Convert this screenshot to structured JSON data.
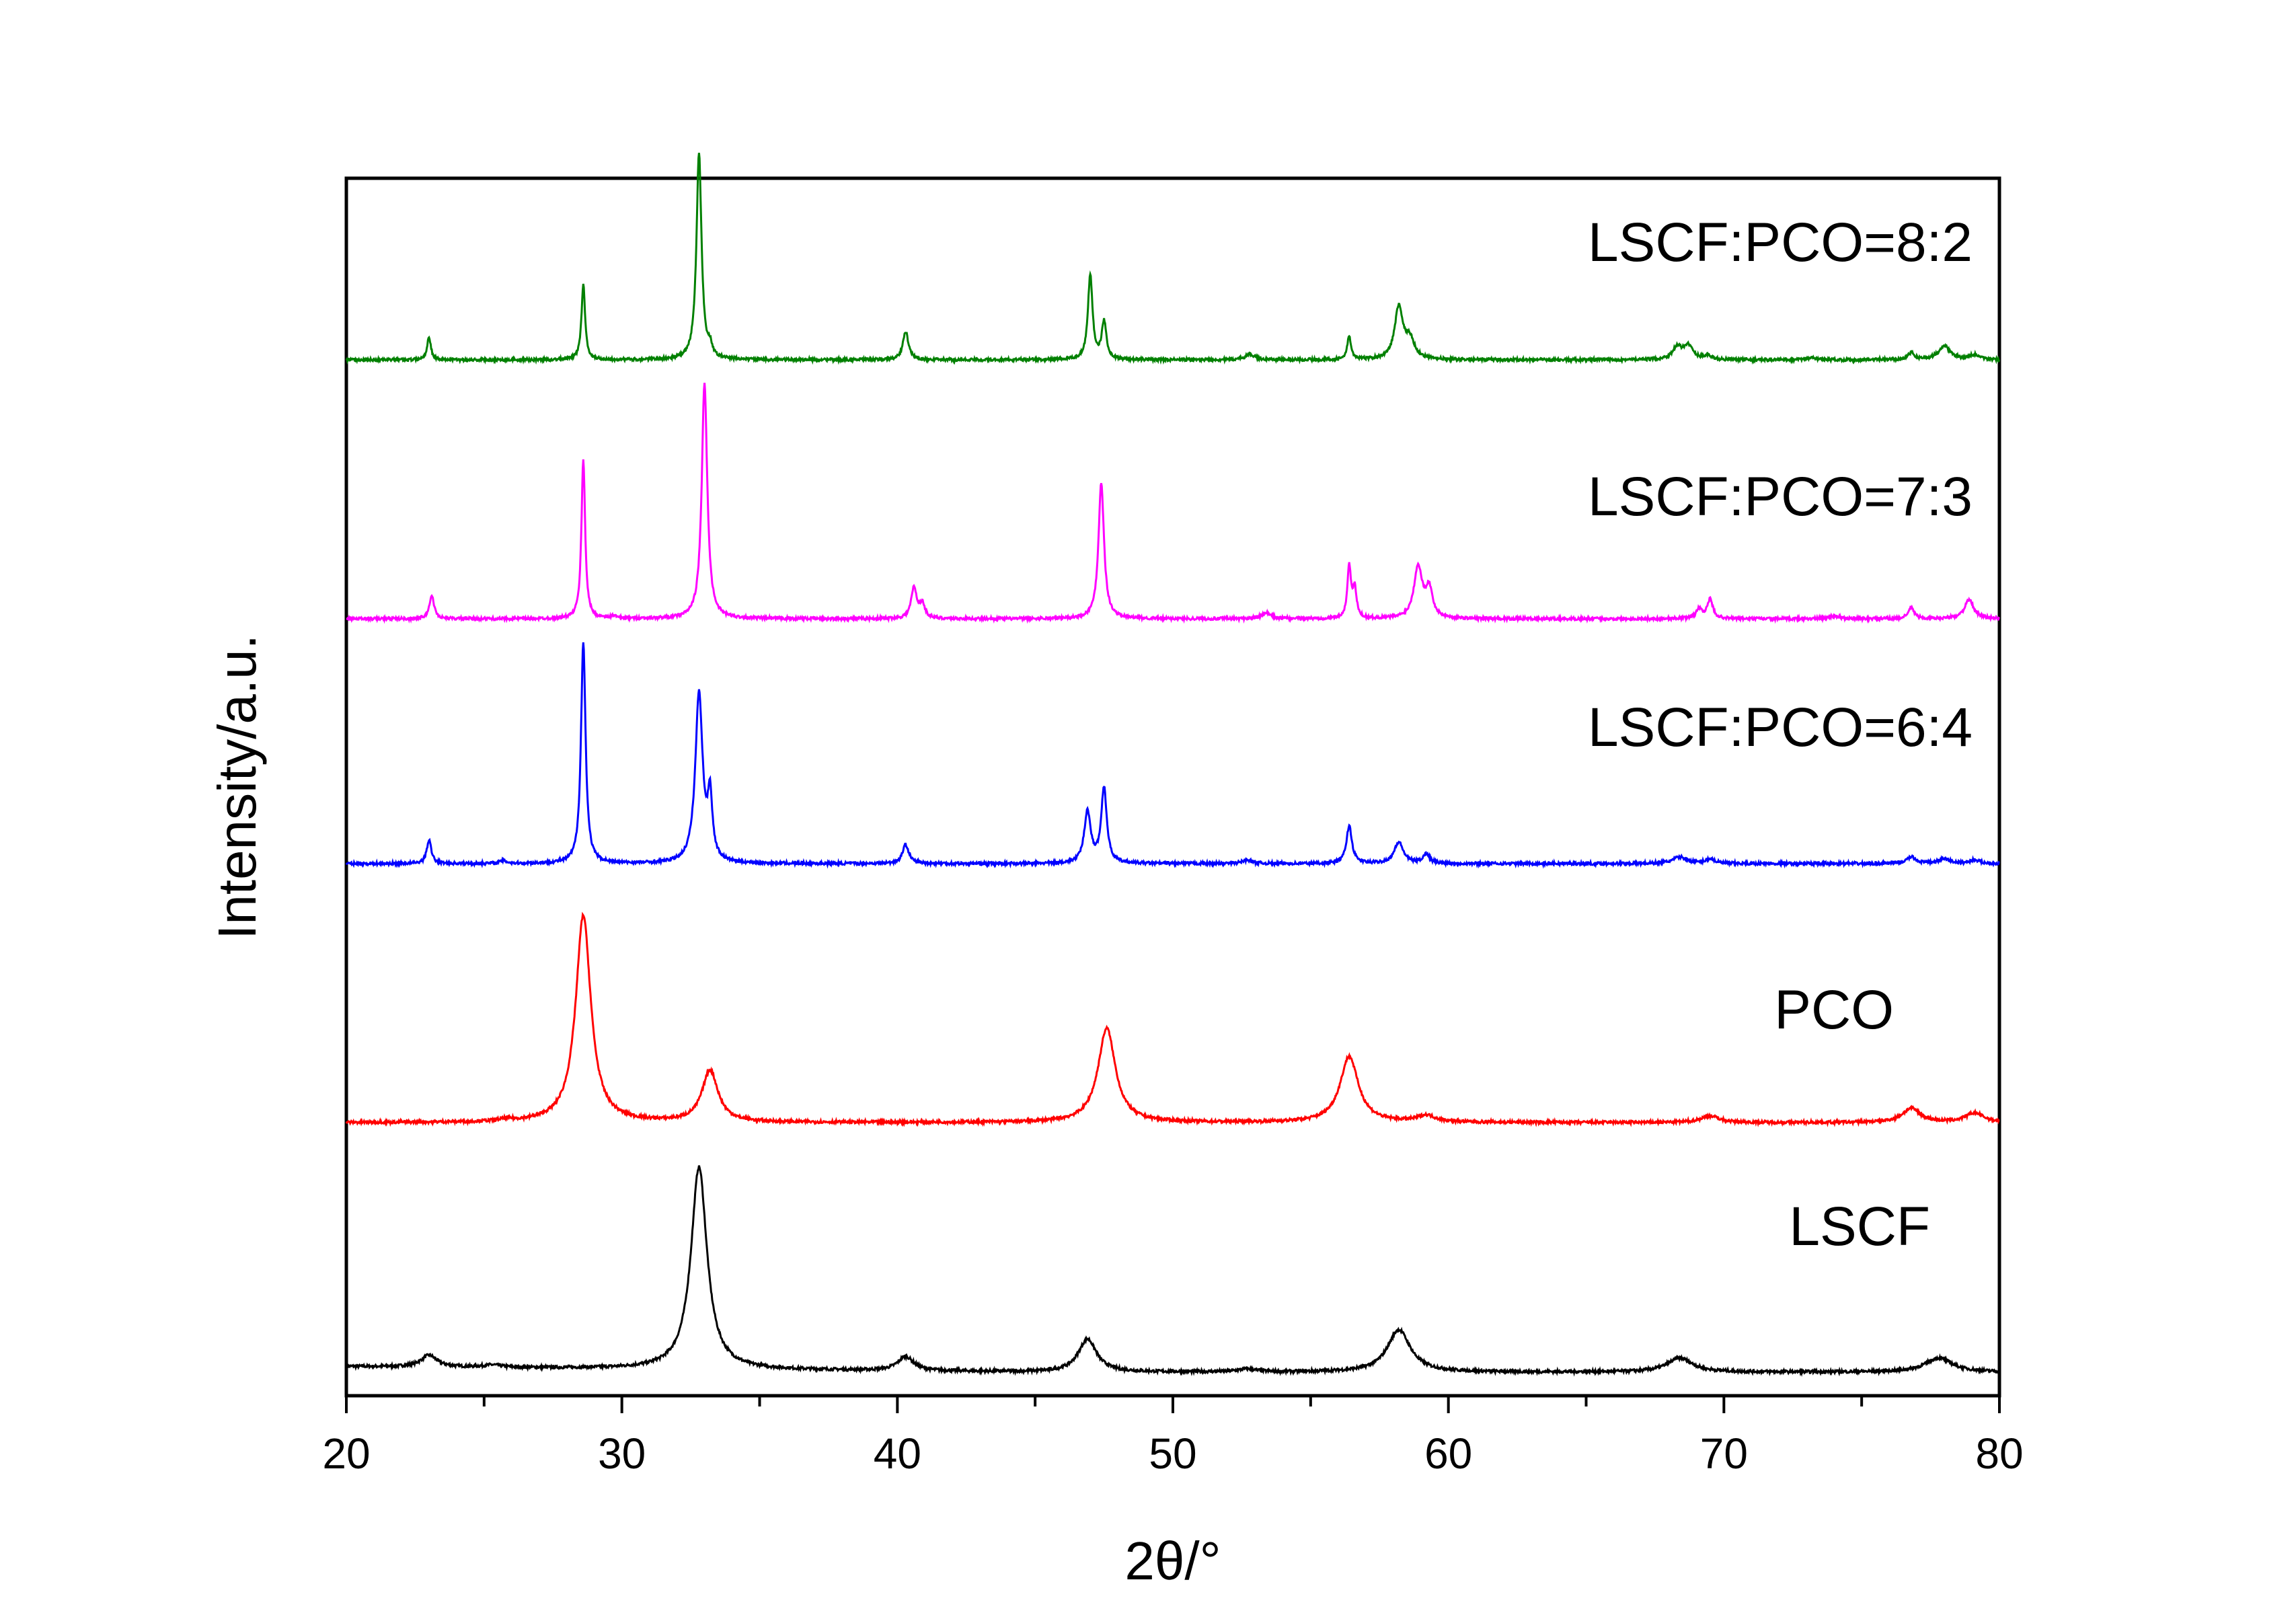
{
  "chart_data": {
    "type": "line",
    "xlabel": "2θ/°",
    "ylabel": "Intensity/a.u.",
    "xlim": [
      20,
      80
    ],
    "x_ticks": [
      "20",
      "30",
      "40",
      "50",
      "60",
      "70",
      "80"
    ],
    "x_minor_step": 5,
    "y_ticks": [],
    "grid": false,
    "legend": "labels placed beside each curve (right side)",
    "series": [
      {
        "name": "LSCF",
        "color": "#000000",
        "baseline": 0.0,
        "label_offset": 0.27,
        "peaks": [
          [
            23.0,
            0.025,
            0.35
          ],
          [
            25.3,
            0.005,
            0.4
          ],
          [
            32.8,
            0.43,
            0.35
          ],
          [
            40.3,
            0.03,
            0.35
          ],
          [
            46.9,
            0.07,
            0.4
          ],
          [
            52.7,
            0.006,
            0.4
          ],
          [
            58.2,
            0.09,
            0.5
          ],
          [
            68.4,
            0.03,
            0.55
          ],
          [
            77.8,
            0.03,
            0.6
          ]
        ]
      },
      {
        "name": "PCO",
        "color": "#ff0000",
        "baseline": 0.53,
        "label_offset": 0.2,
        "peaks": [
          [
            25.8,
            0.004,
            0.3
          ],
          [
            28.6,
            0.44,
            0.33
          ],
          [
            33.2,
            0.11,
            0.35
          ],
          [
            47.6,
            0.2,
            0.38
          ],
          [
            56.4,
            0.14,
            0.4
          ],
          [
            59.2,
            0.014,
            0.4
          ],
          [
            69.5,
            0.014,
            0.4
          ],
          [
            76.8,
            0.03,
            0.4
          ],
          [
            79.1,
            0.02,
            0.4
          ]
        ]
      },
      {
        "name": "LSCF:PCO=6:4",
        "color": "#0000ff",
        "baseline": 1.08,
        "label_offset": 0.25,
        "peaks": [
          [
            23.0,
            0.05,
            0.1
          ],
          [
            25.7,
            0.006,
            0.15
          ],
          [
            28.6,
            0.47,
            0.1
          ],
          [
            32.8,
            0.36,
            0.16
          ],
          [
            33.2,
            0.13,
            0.1
          ],
          [
            40.3,
            0.04,
            0.14
          ],
          [
            46.9,
            0.11,
            0.14
          ],
          [
            47.5,
            0.16,
            0.12
          ],
          [
            52.7,
            0.008,
            0.2
          ],
          [
            56.4,
            0.08,
            0.12
          ],
          [
            58.2,
            0.045,
            0.2
          ],
          [
            59.2,
            0.02,
            0.15
          ],
          [
            68.4,
            0.014,
            0.3
          ],
          [
            69.5,
            0.01,
            0.2
          ],
          [
            76.8,
            0.014,
            0.2
          ],
          [
            78.0,
            0.01,
            0.25
          ],
          [
            79.1,
            0.008,
            0.2
          ]
        ]
      },
      {
        "name": "LSCF:PCO=7:3",
        "color": "#ff00ff",
        "baseline": 1.6,
        "label_offset": 0.22,
        "peaks": [
          [
            23.1,
            0.05,
            0.1
          ],
          [
            28.6,
            0.34,
            0.08
          ],
          [
            29.7,
            0.006,
            0.1
          ],
          [
            33.0,
            0.5,
            0.12
          ],
          [
            40.6,
            0.065,
            0.12
          ],
          [
            40.9,
            0.03,
            0.12
          ],
          [
            47.4,
            0.29,
            0.12
          ],
          [
            53.4,
            0.012,
            0.2
          ],
          [
            56.4,
            0.11,
            0.08
          ],
          [
            56.6,
            0.06,
            0.08
          ],
          [
            58.9,
            0.11,
            0.18
          ],
          [
            59.3,
            0.06,
            0.15
          ],
          [
            69.1,
            0.02,
            0.15
          ],
          [
            69.5,
            0.04,
            0.12
          ],
          [
            74.0,
            0.006,
            0.2
          ],
          [
            76.8,
            0.025,
            0.12
          ],
          [
            78.9,
            0.04,
            0.2
          ]
        ]
      },
      {
        "name": "LSCF:PCO=8:2",
        "color": "#008000",
        "baseline": 2.15,
        "label_offset": 0.21,
        "peaks": [
          [
            23.0,
            0.05,
            0.08
          ],
          [
            28.6,
            0.16,
            0.08
          ],
          [
            32.8,
            0.44,
            0.11
          ],
          [
            33.2,
            0.02,
            0.08
          ],
          [
            40.3,
            0.06,
            0.12
          ],
          [
            47.0,
            0.18,
            0.1
          ],
          [
            47.5,
            0.08,
            0.1
          ],
          [
            52.8,
            0.012,
            0.2
          ],
          [
            56.4,
            0.05,
            0.08
          ],
          [
            58.2,
            0.11,
            0.18
          ],
          [
            58.6,
            0.04,
            0.2
          ],
          [
            68.3,
            0.025,
            0.2
          ],
          [
            68.7,
            0.03,
            0.2
          ],
          [
            69.4,
            0.008,
            0.15
          ],
          [
            73.2,
            0.004,
            0.2
          ],
          [
            76.8,
            0.014,
            0.15
          ],
          [
            78.0,
            0.03,
            0.25
          ],
          [
            79.1,
            0.01,
            0.2
          ]
        ]
      }
    ]
  }
}
